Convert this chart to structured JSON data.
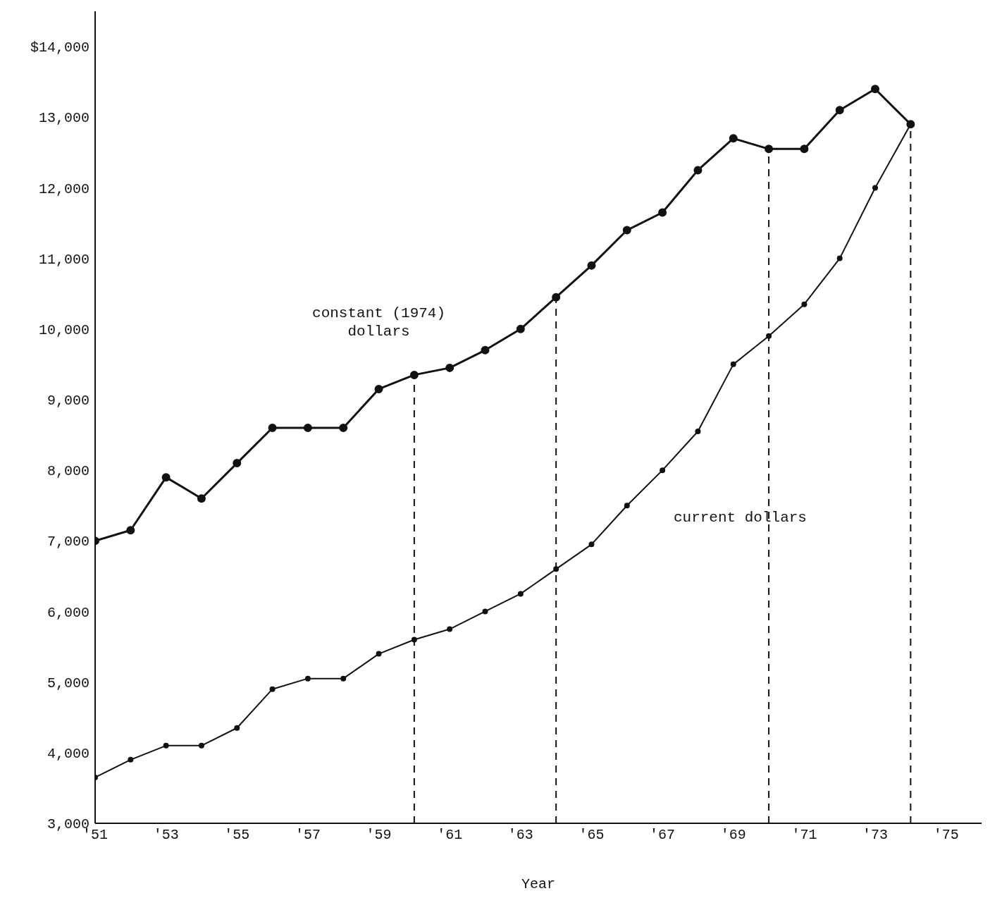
{
  "chart_data": {
    "type": "line",
    "xlabel": "Year",
    "x": [
      1951,
      1952,
      1953,
      1954,
      1955,
      1956,
      1957,
      1958,
      1959,
      1960,
      1961,
      1962,
      1963,
      1964,
      1965,
      1966,
      1967,
      1968,
      1969,
      1970,
      1971,
      1972,
      1973,
      1974
    ],
    "series": [
      {
        "name": "constant (1974) dollars",
        "color": "#111111",
        "values": [
          7000,
          7150,
          7900,
          7600,
          8100,
          8600,
          8600,
          8600,
          9150,
          9350,
          9450,
          9700,
          10000,
          10450,
          10900,
          11400,
          11650,
          12250,
          12700,
          12550,
          12550,
          13100,
          13400,
          12900
        ]
      },
      {
        "name": "current dollars",
        "color": "#111111",
        "values": [
          3650,
          3900,
          4100,
          4100,
          4350,
          4900,
          5050,
          5050,
          5400,
          5600,
          5750,
          6000,
          6250,
          6600,
          6950,
          7500,
          8000,
          8550,
          9500,
          9900,
          10350,
          11000,
          12000,
          12900
        ]
      }
    ],
    "xlim": [
      1951,
      1976
    ],
    "xticks": [
      {
        "value": 1951,
        "label": "'51"
      },
      {
        "value": 1953,
        "label": "'53"
      },
      {
        "value": 1955,
        "label": "'55"
      },
      {
        "value": 1957,
        "label": "'57"
      },
      {
        "value": 1959,
        "label": "'59"
      },
      {
        "value": 1961,
        "label": "'61"
      },
      {
        "value": 1963,
        "label": "'63"
      },
      {
        "value": 1965,
        "label": "'65"
      },
      {
        "value": 1967,
        "label": "'67"
      },
      {
        "value": 1969,
        "label": "'69"
      },
      {
        "value": 1971,
        "label": "'71"
      },
      {
        "value": 1973,
        "label": "'73"
      },
      {
        "value": 1975,
        "label": "'75"
      }
    ],
    "ylim": [
      3000,
      14500
    ],
    "yticks": [
      {
        "value": 3000,
        "label": "3,000"
      },
      {
        "value": 4000,
        "label": "4,000"
      },
      {
        "value": 5000,
        "label": "5,000"
      },
      {
        "value": 6000,
        "label": "6,000"
      },
      {
        "value": 7000,
        "label": "7,000"
      },
      {
        "value": 8000,
        "label": "8,000"
      },
      {
        "value": 9000,
        "label": "9,000"
      },
      {
        "value": 10000,
        "label": "10,000"
      },
      {
        "value": 11000,
        "label": "11,000"
      },
      {
        "value": 12000,
        "label": "12,000"
      },
      {
        "value": 13000,
        "label": "13,000"
      },
      {
        "value": 14000,
        "label": "$14,000"
      }
    ],
    "ref_lines": [
      {
        "axis": "x",
        "value": 1960,
        "label": null,
        "color": "#111111",
        "line_style": "dashed"
      },
      {
        "axis": "x",
        "value": 1964,
        "label": null,
        "color": "#111111",
        "line_style": "dashed"
      },
      {
        "axis": "x",
        "value": 1970,
        "label": null,
        "color": "#111111",
        "line_style": "dashed"
      },
      {
        "axis": "x",
        "value": 1974,
        "label": null,
        "color": "#111111",
        "line_style": "dashed"
      }
    ],
    "grid": false,
    "legend": false,
    "marker": "circle",
    "line_style": "solid"
  }
}
